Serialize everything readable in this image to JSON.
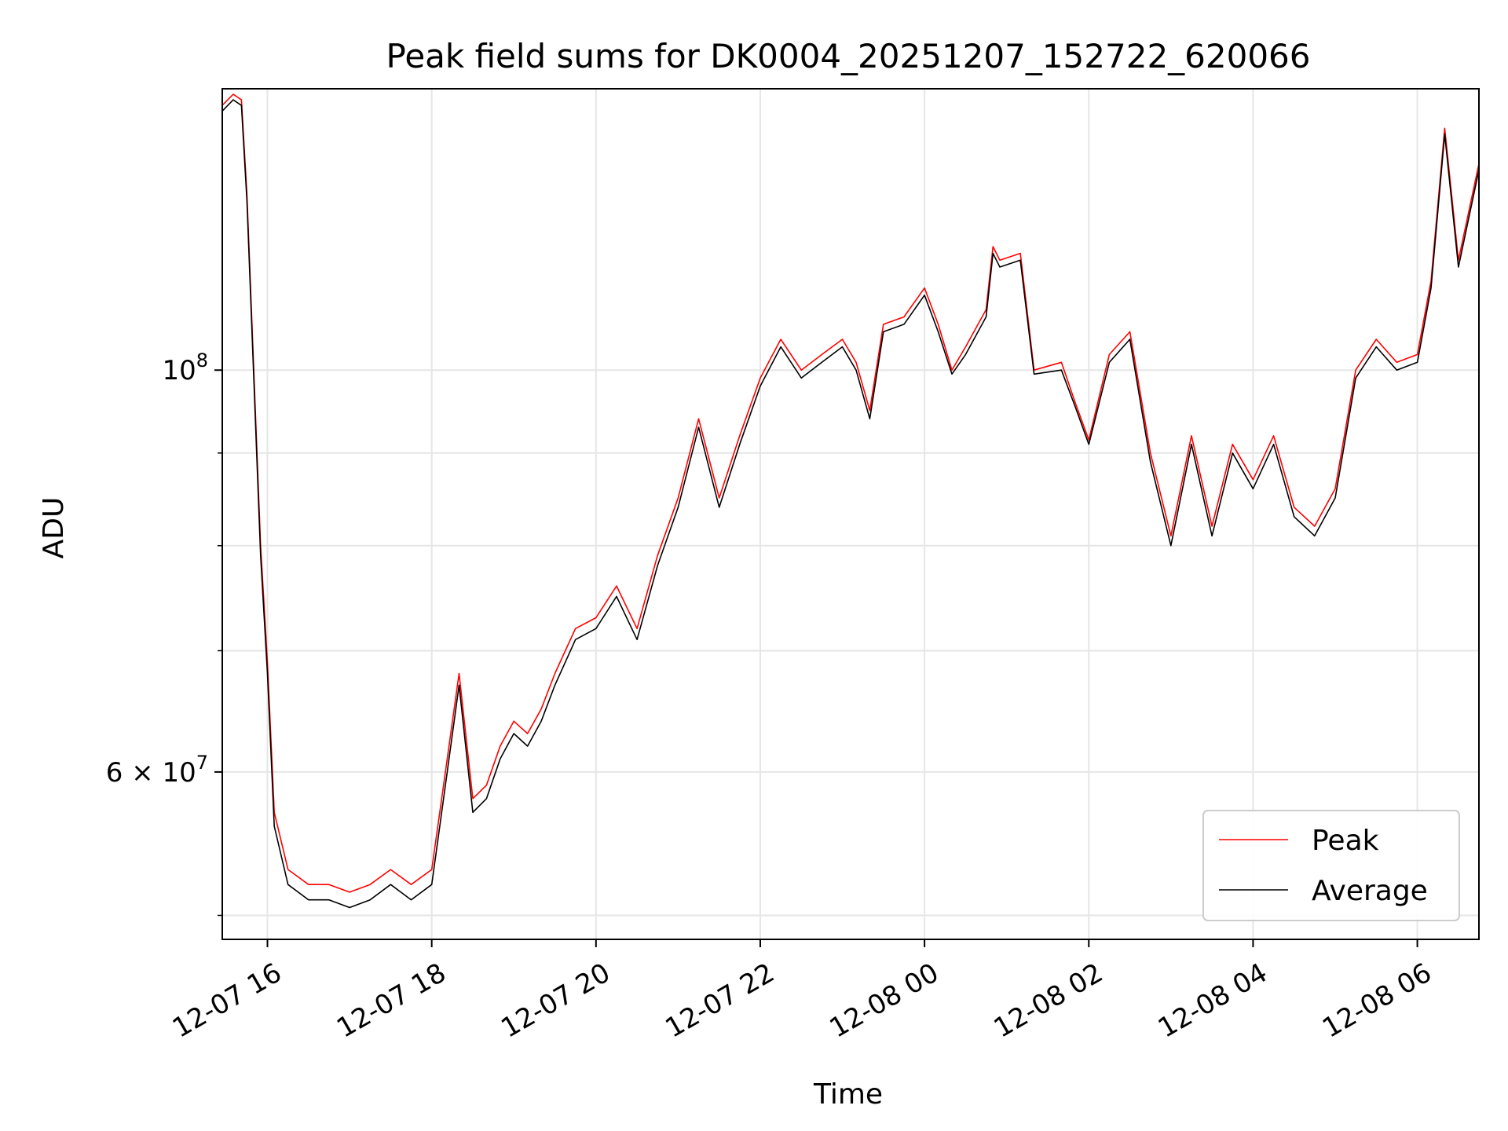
{
  "chart_data": {
    "type": "line",
    "title": "Peak field sums for DK0004_20251207_152722_620066",
    "xlabel": "Time",
    "ylabel": "ADU",
    "y_scale": "log",
    "xlim": [
      "2025-12-07 15:27",
      "2025-12-08 06:45"
    ],
    "ylim": [
      48500000,
      143000000
    ],
    "x_ticks": [
      {
        "value": "2025-12-07 16:00",
        "label": "12-07 16"
      },
      {
        "value": "2025-12-07 18:00",
        "label": "12-07 18"
      },
      {
        "value": "2025-12-07 20:00",
        "label": "12-07 20"
      },
      {
        "value": "2025-12-07 22:00",
        "label": "12-07 22"
      },
      {
        "value": "2025-12-08 00:00",
        "label": "12-08 00"
      },
      {
        "value": "2025-12-08 02:00",
        "label": "12-08 02"
      },
      {
        "value": "2025-12-08 04:00",
        "label": "12-08 04"
      },
      {
        "value": "2025-12-08 06:00",
        "label": "12-08 06"
      }
    ],
    "y_ticks_major": [
      {
        "value": 100000000,
        "label_base": "10",
        "label_exp": "8"
      },
      {
        "value": 60000000,
        "label_base": "6 × 10",
        "label_exp": "7"
      }
    ],
    "y_ticks_minor": [
      50000000,
      70000000,
      80000000,
      90000000
    ],
    "grid": true,
    "legend_position": "lower right",
    "series": [
      {
        "name": "Peak",
        "color": "#ff0000",
        "x": [
          "2025-12-07 15:27",
          "2025-12-07 15:35",
          "2025-12-07 15:41",
          "2025-12-07 15:45",
          "2025-12-07 15:50",
          "2025-12-07 15:55",
          "2025-12-07 16:00",
          "2025-12-07 16:05",
          "2025-12-07 16:15",
          "2025-12-07 16:30",
          "2025-12-07 16:45",
          "2025-12-07 17:00",
          "2025-12-07 17:15",
          "2025-12-07 17:30",
          "2025-12-07 17:45",
          "2025-12-07 18:00",
          "2025-12-07 18:10",
          "2025-12-07 18:20",
          "2025-12-07 18:30",
          "2025-12-07 18:40",
          "2025-12-07 18:50",
          "2025-12-07 19:00",
          "2025-12-07 19:10",
          "2025-12-07 19:20",
          "2025-12-07 19:30",
          "2025-12-07 19:45",
          "2025-12-07 20:00",
          "2025-12-07 20:15",
          "2025-12-07 20:30",
          "2025-12-07 20:45",
          "2025-12-07 21:00",
          "2025-12-07 21:15",
          "2025-12-07 21:30",
          "2025-12-07 21:45",
          "2025-12-07 22:00",
          "2025-12-07 22:15",
          "2025-12-07 22:30",
          "2025-12-07 22:45",
          "2025-12-07 23:00",
          "2025-12-07 23:10",
          "2025-12-07 23:20",
          "2025-12-07 23:30",
          "2025-12-07 23:45",
          "2025-12-08 00:00",
          "2025-12-08 00:10",
          "2025-12-08 00:20",
          "2025-12-08 00:30",
          "2025-12-08 00:45",
          "2025-12-08 00:50",
          "2025-12-08 00:55",
          "2025-12-08 01:10",
          "2025-12-08 01:20",
          "2025-12-08 01:40",
          "2025-12-08 01:50",
          "2025-12-08 02:00",
          "2025-12-08 02:15",
          "2025-12-08 02:30",
          "2025-12-08 02:45",
          "2025-12-08 03:00",
          "2025-12-08 03:15",
          "2025-12-08 03:30",
          "2025-12-08 03:45",
          "2025-12-08 04:00",
          "2025-12-08 04:15",
          "2025-12-08 04:30",
          "2025-12-08 04:45",
          "2025-12-08 05:00",
          "2025-12-08 05:15",
          "2025-12-08 05:30",
          "2025-12-08 05:45",
          "2025-12-08 06:00",
          "2025-12-08 06:10",
          "2025-12-08 06:20",
          "2025-12-08 06:30",
          "2025-12-08 06:45"
        ],
        "y": [
          140000000,
          142000000,
          141000000,
          125000000,
          100000000,
          80000000,
          69000000,
          57000000,
          53000000,
          52000000,
          52000000,
          51500000,
          52000000,
          53000000,
          52000000,
          53000000,
          60000000,
          68000000,
          58000000,
          59000000,
          62000000,
          64000000,
          63000000,
          65000000,
          68000000,
          72000000,
          73000000,
          76000000,
          72000000,
          79000000,
          85000000,
          94000000,
          85000000,
          92000000,
          99000000,
          104000000,
          100000000,
          102000000,
          104000000,
          101000000,
          95000000,
          106000000,
          107000000,
          111000000,
          106000000,
          100000000,
          103000000,
          108000000,
          117000000,
          115000000,
          116000000,
          100000000,
          101000000,
          96000000,
          91500000,
          102000000,
          105000000,
          90000000,
          81000000,
          92000000,
          82000000,
          91000000,
          87000000,
          92000000,
          84000000,
          82000000,
          86000000,
          100000000,
          104000000,
          101000000,
          102000000,
          112000000,
          136000000,
          115000000,
          130000000
        ]
      },
      {
        "name": "Average",
        "color": "#000000",
        "x": [
          "2025-12-07 15:27",
          "2025-12-07 15:35",
          "2025-12-07 15:41",
          "2025-12-07 15:45",
          "2025-12-07 15:50",
          "2025-12-07 15:55",
          "2025-12-07 16:00",
          "2025-12-07 16:05",
          "2025-12-07 16:15",
          "2025-12-07 16:30",
          "2025-12-07 16:45",
          "2025-12-07 17:00",
          "2025-12-07 17:15",
          "2025-12-07 17:30",
          "2025-12-07 17:45",
          "2025-12-07 18:00",
          "2025-12-07 18:10",
          "2025-12-07 18:20",
          "2025-12-07 18:30",
          "2025-12-07 18:40",
          "2025-12-07 18:50",
          "2025-12-07 19:00",
          "2025-12-07 19:10",
          "2025-12-07 19:20",
          "2025-12-07 19:30",
          "2025-12-07 19:45",
          "2025-12-07 20:00",
          "2025-12-07 20:15",
          "2025-12-07 20:30",
          "2025-12-07 20:45",
          "2025-12-07 21:00",
          "2025-12-07 21:15",
          "2025-12-07 21:30",
          "2025-12-07 21:45",
          "2025-12-07 22:00",
          "2025-12-07 22:15",
          "2025-12-07 22:30",
          "2025-12-07 22:45",
          "2025-12-07 23:00",
          "2025-12-07 23:10",
          "2025-12-07 23:20",
          "2025-12-07 23:30",
          "2025-12-07 23:45",
          "2025-12-08 00:00",
          "2025-12-08 00:10",
          "2025-12-08 00:20",
          "2025-12-08 00:30",
          "2025-12-08 00:45",
          "2025-12-08 00:50",
          "2025-12-08 00:55",
          "2025-12-08 01:10",
          "2025-12-08 01:20",
          "2025-12-08 01:40",
          "2025-12-08 01:50",
          "2025-12-08 02:00",
          "2025-12-08 02:15",
          "2025-12-08 02:30",
          "2025-12-08 02:45",
          "2025-12-08 03:00",
          "2025-12-08 03:15",
          "2025-12-08 03:30",
          "2025-12-08 03:45",
          "2025-12-08 04:00",
          "2025-12-08 04:15",
          "2025-12-08 04:30",
          "2025-12-08 04:45",
          "2025-12-08 05:00",
          "2025-12-08 05:15",
          "2025-12-08 05:30",
          "2025-12-08 05:45",
          "2025-12-08 06:00",
          "2025-12-08 06:10",
          "2025-12-08 06:20",
          "2025-12-08 06:30",
          "2025-12-08 06:45"
        ],
        "y": [
          139000000,
          141000000,
          140000000,
          124000000,
          99000000,
          79000000,
          68000000,
          56000000,
          52000000,
          51000000,
          51000000,
          50500000,
          51000000,
          52000000,
          51000000,
          52000000,
          59000000,
          67000000,
          57000000,
          58000000,
          61000000,
          63000000,
          62000000,
          64000000,
          67000000,
          71000000,
          72000000,
          75000000,
          71000000,
          78000000,
          84000000,
          93000000,
          84000000,
          91000000,
          98000000,
          103000000,
          99000000,
          101000000,
          103000000,
          100000000,
          94000000,
          105000000,
          106000000,
          110000000,
          105000000,
          99500000,
          102000000,
          107000000,
          116000000,
          114000000,
          115000000,
          99500000,
          100000000,
          95500000,
          91000000,
          101000000,
          104000000,
          89000000,
          80000000,
          91000000,
          81000000,
          90000000,
          86000000,
          91000000,
          83000000,
          81000000,
          85000000,
          99000000,
          103000000,
          100000000,
          101000000,
          111000000,
          135000000,
          114000000,
          129000000
        ]
      }
    ]
  }
}
